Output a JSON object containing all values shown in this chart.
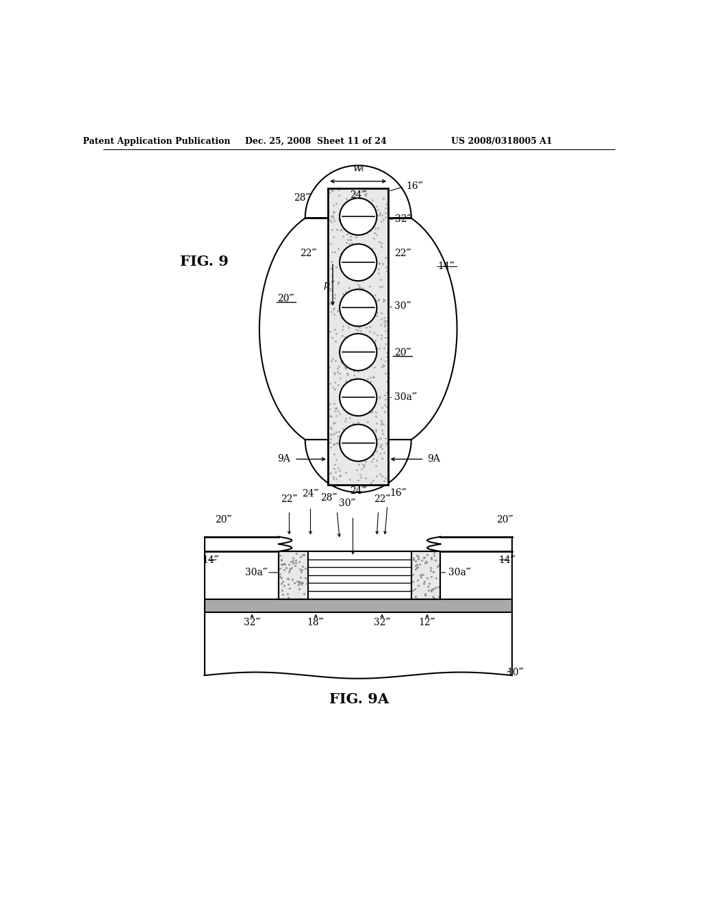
{
  "header_left": "Patent Application Publication",
  "header_mid": "Dec. 25, 2008  Sheet 11 of 24",
  "header_right": "US 2008/0318005 A1",
  "fig9_label": "FIG. 9",
  "fig9a_label": "FIG. 9A",
  "bg_color": "#ffffff",
  "line_color": "#000000",
  "wt_label": "wₜ",
  "labels_9": {
    "16": "16‴",
    "28": "28‴",
    "24t": "24‴",
    "24b": "24‴",
    "14": "14‴",
    "32": "32‴",
    "22l": "22‴",
    "22r": "22‴",
    "20l": "20‴",
    "20r": "20‴",
    "30": "30‴",
    "p": "p",
    "30a": "30a‴",
    "9Al": "9A",
    "9Ar": "9A"
  },
  "labels_9a": {
    "20tl": "20‴",
    "20tr": "20‴",
    "22l": "22‴",
    "22r": "22‴",
    "24": "24‴",
    "28": "28‴",
    "16": "16‴",
    "30": "30‴",
    "14l": "14‴",
    "14r": "14‴",
    "30al": "30a‴",
    "30ar": "30a‴",
    "32l": "32‴",
    "32r": "32‴",
    "18": "18‴",
    "12": "12‴",
    "10": "10‴"
  }
}
